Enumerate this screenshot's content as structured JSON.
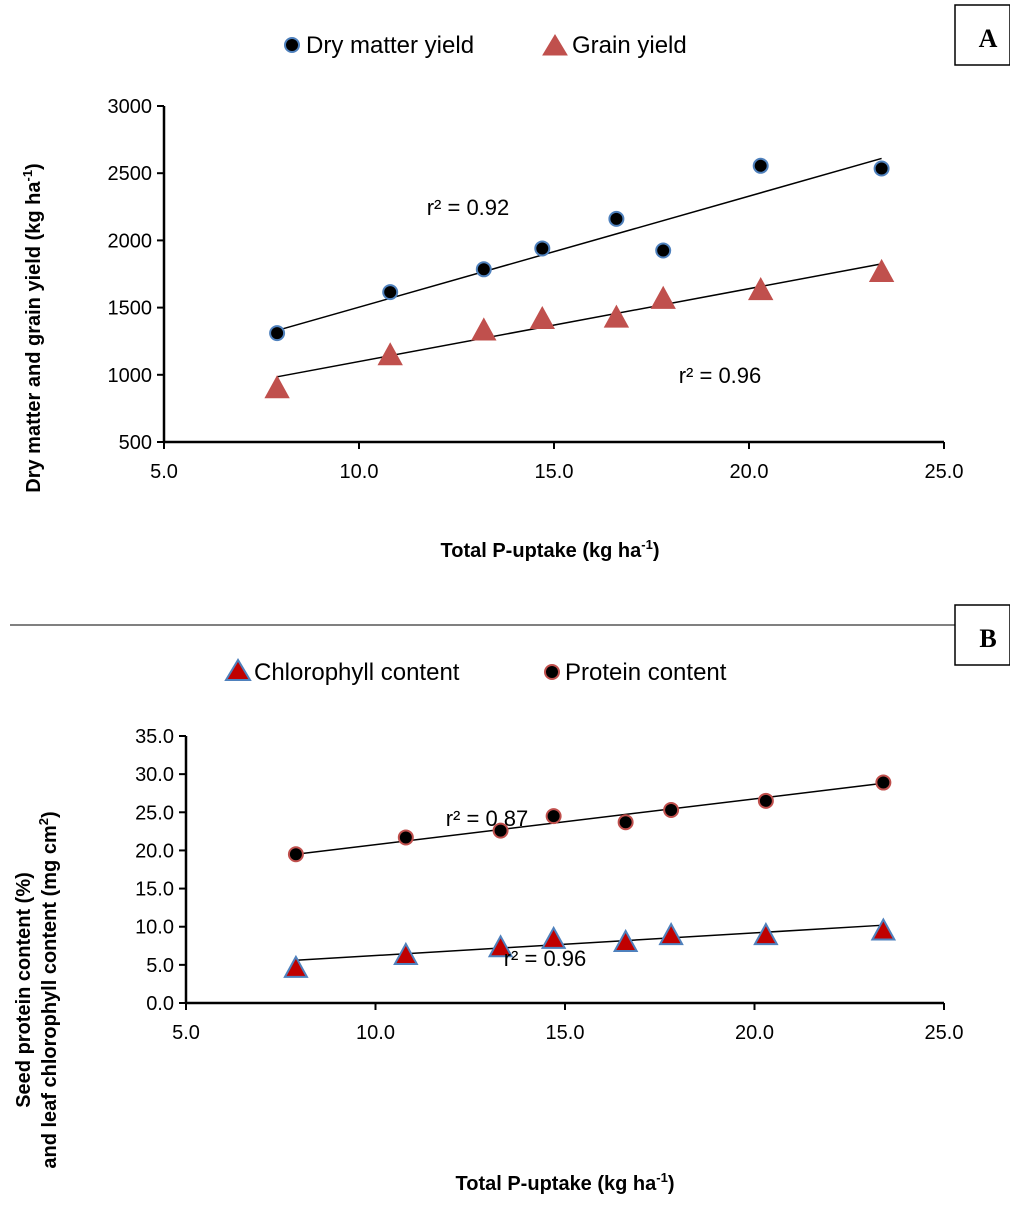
{
  "chart_data": [
    {
      "type": "scatter",
      "panel_label": "A",
      "xlabel": "Total P-uptake (kg ha",
      "xlabel_sup": "-1",
      "xlabel_end": ")",
      "ylabel": "Dry matter and grain yield  (kg ha",
      "ylabel_sup": "-1",
      "ylabel_end": ")",
      "xlim": [
        5.0,
        25.0
      ],
      "ylim": [
        500,
        3000
      ],
      "xticks": [
        "5.0",
        "10.0",
        "15.0",
        "20.0",
        "25.0"
      ],
      "yticks": [
        "500",
        "1000",
        "1500",
        "2000",
        "2500",
        "3000"
      ],
      "legend_position": "top",
      "series": [
        {
          "name": "Dry matter yield",
          "marker": "circle",
          "fill": "#000000",
          "stroke": "#4f81bd",
          "x": [
            7.9,
            10.8,
            13.2,
            14.7,
            16.6,
            17.8,
            20.3,
            23.4
          ],
          "y": [
            1310,
            1615,
            1785,
            1940,
            2160,
            1925,
            2555,
            2535
          ],
          "fit": [
            [
              7.9,
              1330
            ],
            [
              23.4,
              2610
            ]
          ],
          "r2_label": "r² = 0.92"
        },
        {
          "name": "Grain yield",
          "marker": "triangle",
          "fill": "#c0504d",
          "stroke": "#c0504d",
          "x": [
            7.9,
            10.8,
            13.2,
            14.7,
            16.6,
            17.8,
            20.3,
            23.4
          ],
          "y": [
            900,
            1145,
            1330,
            1415,
            1425,
            1565,
            1630,
            1765
          ],
          "fit": [
            [
              7.9,
              985
            ],
            [
              23.4,
              1825
            ]
          ],
          "r2_label": "r² = 0.96"
        }
      ]
    },
    {
      "type": "scatter",
      "panel_label": "B",
      "xlabel": "Total P-uptake (kg ha",
      "xlabel_sup": "-1",
      "xlabel_end": ")",
      "ylabel_line1": "Seed protein content (%)",
      "ylabel_line2": "and leaf chlorophyll content (mg cm",
      "ylabel_line2_sup": "2",
      "ylabel_line2_end": ")",
      "xlim": [
        5.0,
        25.0
      ],
      "ylim": [
        0.0,
        35.0
      ],
      "xticks": [
        "5.0",
        "10.0",
        "15.0",
        "20.0",
        "25.0"
      ],
      "yticks": [
        "0.0",
        "5.0",
        "10.0",
        "15.0",
        "20.0",
        "25.0",
        "30.0",
        "35.0"
      ],
      "legend_position": "top",
      "series": [
        {
          "name": "Chlorophyll content",
          "marker": "triangle",
          "fill": "#c00000",
          "stroke": "#4f81bd",
          "x": [
            7.9,
            10.8,
            13.3,
            14.7,
            16.6,
            17.8,
            20.3,
            23.4
          ],
          "y": [
            4.6,
            6.3,
            7.3,
            8.4,
            8.0,
            8.9,
            8.9,
            9.5
          ],
          "fit": [
            [
              7.9,
              5.6
            ],
            [
              23.4,
              10.2
            ]
          ],
          "r2_label": "r² = 0.87"
        },
        {
          "name": "Protein content",
          "marker": "circle",
          "fill": "#000000",
          "stroke": "#c0504d",
          "x": [
            7.9,
            10.8,
            13.3,
            14.7,
            16.6,
            17.8,
            20.3,
            23.4
          ],
          "y": [
            19.5,
            21.7,
            22.6,
            24.5,
            23.7,
            25.3,
            26.5,
            28.9
          ],
          "fit": [
            [
              7.9,
              19.5
            ],
            [
              23.4,
              28.8
            ]
          ],
          "r2_label": "r² = 0.96"
        }
      ]
    }
  ]
}
